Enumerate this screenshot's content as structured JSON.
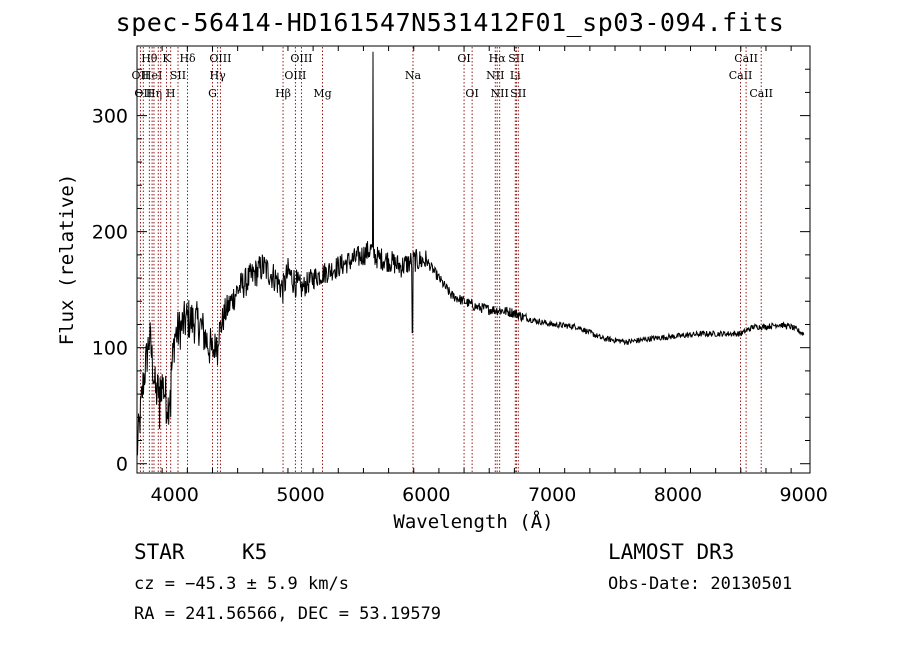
{
  "title": "spec-56414-HD161547N531412F01_sp03-094.fits",
  "info": {
    "object_class": "STAR",
    "spectral_type": "K5",
    "survey": "LAMOST DR3",
    "velocity": "cz = −45.3 ± 5.9 km/s",
    "obs_date": "Obs-Date: 20130501",
    "coordinates": "RA = 241.56566, DEC =  53.19579"
  },
  "chart_data": {
    "type": "line",
    "title": "spec-56414-HD161547N531412F01_sp03-094.fits",
    "xlabel": "Wavelength (Å)",
    "ylabel": "Flux (relative)",
    "xlim": [
      3700,
      9050
    ],
    "ylim": [
      -8,
      360
    ],
    "xticks": [
      4000,
      5000,
      6000,
      7000,
      8000,
      9000
    ],
    "yticks": [
      0,
      100,
      200,
      300
    ],
    "grid": false,
    "line_color": "#000000",
    "marker_color": "#8b0000",
    "spectrum_anchors": {
      "x": [
        3700,
        3750,
        3800,
        3850,
        3900,
        3950,
        4000,
        4100,
        4200,
        4300,
        4400,
        4500,
        4600,
        4700,
        4800,
        4860,
        4900,
        5000,
        5100,
        5200,
        5300,
        5400,
        5500,
        5560,
        5600,
        5700,
        5800,
        5900,
        6000,
        6100,
        6200,
        6300,
        6400,
        6500,
        6600,
        6700,
        6800,
        7000,
        7200,
        7400,
        7600,
        7800,
        8000,
        8200,
        8400,
        8500,
        8600,
        8700,
        8800,
        8900,
        9000
      ],
      "y": [
        10,
        70,
        110,
        60,
        70,
        50,
        110,
        125,
        120,
        95,
        130,
        150,
        160,
        170,
        160,
        150,
        165,
        150,
        160,
        165,
        170,
        175,
        180,
        185,
        178,
        175,
        170,
        175,
        175,
        160,
        145,
        140,
        135,
        133,
        132,
        130,
        125,
        120,
        118,
        108,
        105,
        108,
        110,
        112,
        112,
        112,
        118,
        118,
        120,
        118,
        112
      ]
    },
    "spikes": [
      {
        "x": 5577,
        "y": 355
      },
      {
        "x": 5890,
        "y": 113
      },
      {
        "x": 3934,
        "y": 35
      },
      {
        "x": 3968,
        "y": 40
      },
      {
        "x": 3880,
        "y": 30
      },
      {
        "x": 4340,
        "y": 85
      }
    ],
    "line_markers": [
      {
        "x": 3727,
        "label": "OII",
        "row": 2
      },
      {
        "x": 3750,
        "label": "OII",
        "row": 3
      },
      {
        "x": 3798,
        "label": "Hθ",
        "row": 1
      },
      {
        "x": 3820,
        "label": "HeI",
        "row": 2
      },
      {
        "x": 3835,
        "label": "Hη",
        "row": 3
      },
      {
        "x": 3869,
        "label": "",
        "row": 0
      },
      {
        "x": 3889,
        "label": "",
        "row": 0
      },
      {
        "x": 3934,
        "label": "K",
        "row": 1
      },
      {
        "x": 3968,
        "label": "H",
        "row": 3
      },
      {
        "x": 4026,
        "label": "SII",
        "row": 2
      },
      {
        "x": 4102,
        "label": "Hδ",
        "row": 1
      },
      {
        "x": 4300,
        "label": "G",
        "row": 3
      },
      {
        "x": 4341,
        "label": "Hγ",
        "row": 2
      },
      {
        "x": 4363,
        "label": "OIII",
        "row": 1
      },
      {
        "x": 4861,
        "label": "Hβ",
        "row": 3
      },
      {
        "x": 4959,
        "label": "OIII",
        "row": 2
      },
      {
        "x": 5007,
        "label": "OIII",
        "row": 1
      },
      {
        "x": 5175,
        "label": "Mg",
        "row": 3
      },
      {
        "x": 5894,
        "label": "Na",
        "row": 2
      },
      {
        "x": 6300,
        "label": "OI",
        "row": 1
      },
      {
        "x": 6364,
        "label": "OI",
        "row": 3
      },
      {
        "x": 6548,
        "label": "NII",
        "row": 2
      },
      {
        "x": 6563,
        "label": "Hα",
        "row": 1
      },
      {
        "x": 6583,
        "label": "NII",
        "row": 3
      },
      {
        "x": 6707,
        "label": "Li",
        "row": 2
      },
      {
        "x": 6716,
        "label": "SII",
        "row": 1
      },
      {
        "x": 6731,
        "label": "SII",
        "row": 3
      },
      {
        "x": 8498,
        "label": "CaII",
        "row": 2
      },
      {
        "x": 8542,
        "label": "CaII",
        "row": 1
      },
      {
        "x": 8662,
        "label": "CaII",
        "row": 3
      }
    ]
  }
}
